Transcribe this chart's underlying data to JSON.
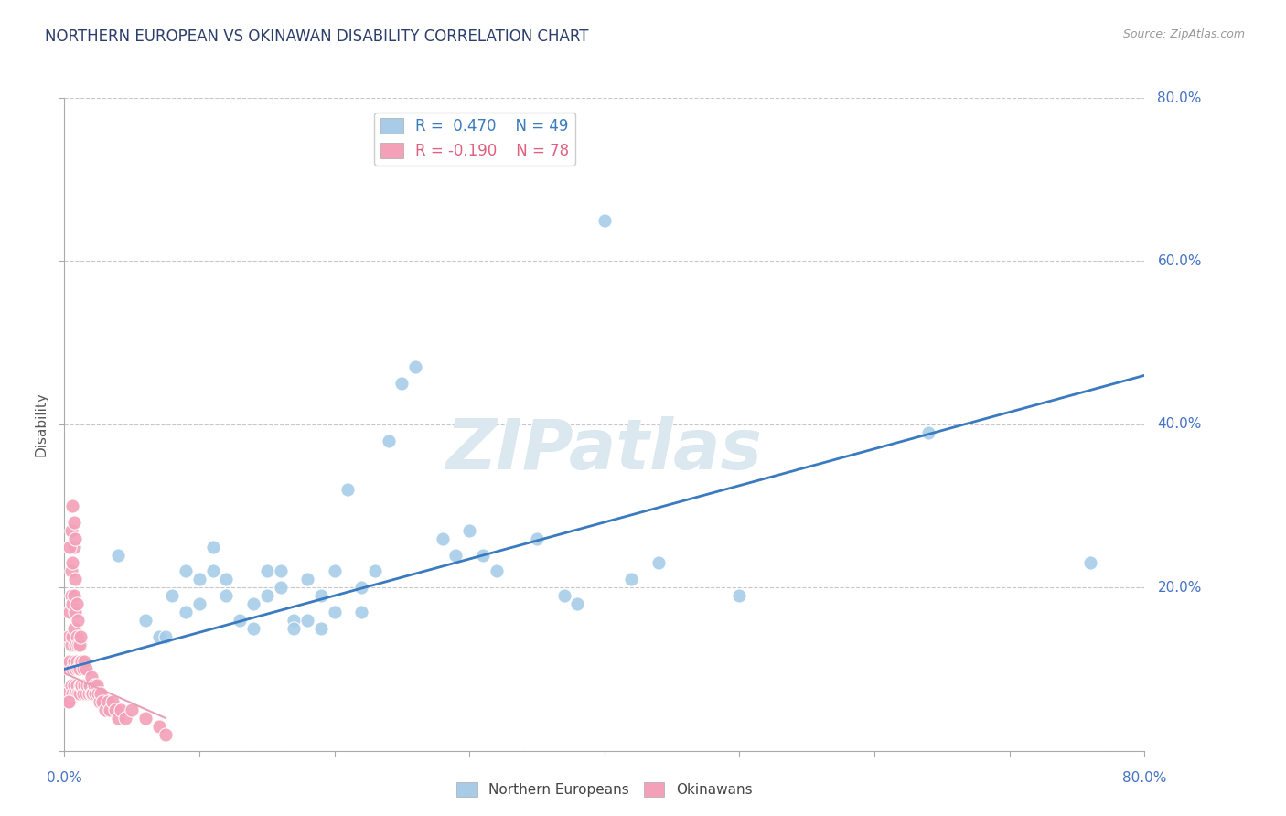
{
  "title": "NORTHERN EUROPEAN VS OKINAWAN DISABILITY CORRELATION CHART",
  "source": "Source: ZipAtlas.com",
  "ylabel": "Disability",
  "xlim": [
    0.0,
    0.8
  ],
  "ylim": [
    0.0,
    0.8
  ],
  "legend_r1": "R =  0.470",
  "legend_n1": "N = 49",
  "legend_r2": "R = -0.190",
  "legend_n2": "N = 78",
  "blue_color": "#a8cce8",
  "pink_color": "#f4a0b8",
  "blue_line_color": "#3a7abf",
  "pink_line_color": "#e8a0b8",
  "watermark_color": "#dce8f0",
  "background_color": "#ffffff",
  "grid_color": "#c8c8c8",
  "blue_line_x0": 0.0,
  "blue_line_y0": 0.1,
  "blue_line_x1": 0.8,
  "blue_line_y1": 0.46,
  "pink_line_x0": 0.0,
  "pink_line_y0": 0.095,
  "pink_line_x1": 0.075,
  "pink_line_y1": 0.04,
  "blue_points": [
    [
      0.04,
      0.24
    ],
    [
      0.06,
      0.16
    ],
    [
      0.07,
      0.14
    ],
    [
      0.075,
      0.14
    ],
    [
      0.08,
      0.19
    ],
    [
      0.09,
      0.22
    ],
    [
      0.09,
      0.17
    ],
    [
      0.1,
      0.21
    ],
    [
      0.1,
      0.18
    ],
    [
      0.11,
      0.22
    ],
    [
      0.11,
      0.25
    ],
    [
      0.12,
      0.19
    ],
    [
      0.12,
      0.21
    ],
    [
      0.13,
      0.16
    ],
    [
      0.14,
      0.18
    ],
    [
      0.14,
      0.15
    ],
    [
      0.15,
      0.22
    ],
    [
      0.15,
      0.19
    ],
    [
      0.16,
      0.22
    ],
    [
      0.16,
      0.2
    ],
    [
      0.17,
      0.16
    ],
    [
      0.17,
      0.15
    ],
    [
      0.18,
      0.21
    ],
    [
      0.18,
      0.16
    ],
    [
      0.19,
      0.15
    ],
    [
      0.19,
      0.19
    ],
    [
      0.2,
      0.17
    ],
    [
      0.2,
      0.22
    ],
    [
      0.21,
      0.32
    ],
    [
      0.22,
      0.17
    ],
    [
      0.22,
      0.2
    ],
    [
      0.23,
      0.22
    ],
    [
      0.24,
      0.38
    ],
    [
      0.25,
      0.45
    ],
    [
      0.26,
      0.47
    ],
    [
      0.28,
      0.26
    ],
    [
      0.29,
      0.24
    ],
    [
      0.3,
      0.27
    ],
    [
      0.31,
      0.24
    ],
    [
      0.32,
      0.22
    ],
    [
      0.35,
      0.26
    ],
    [
      0.37,
      0.19
    ],
    [
      0.38,
      0.18
    ],
    [
      0.4,
      0.65
    ],
    [
      0.42,
      0.21
    ],
    [
      0.44,
      0.23
    ],
    [
      0.5,
      0.19
    ],
    [
      0.64,
      0.39
    ],
    [
      0.76,
      0.23
    ]
  ],
  "pink_points": [
    [
      0.002,
      0.07
    ],
    [
      0.003,
      0.1
    ],
    [
      0.003,
      0.14
    ],
    [
      0.004,
      0.06
    ],
    [
      0.004,
      0.11
    ],
    [
      0.004,
      0.17
    ],
    [
      0.005,
      0.08
    ],
    [
      0.005,
      0.13
    ],
    [
      0.005,
      0.19
    ],
    [
      0.005,
      0.22
    ],
    [
      0.006,
      0.07
    ],
    [
      0.006,
      0.1
    ],
    [
      0.006,
      0.14
    ],
    [
      0.006,
      0.18
    ],
    [
      0.006,
      0.23
    ],
    [
      0.007,
      0.08
    ],
    [
      0.007,
      0.11
    ],
    [
      0.007,
      0.15
    ],
    [
      0.007,
      0.19
    ],
    [
      0.007,
      0.25
    ],
    [
      0.008,
      0.07
    ],
    [
      0.008,
      0.1
    ],
    [
      0.008,
      0.13
    ],
    [
      0.008,
      0.17
    ],
    [
      0.008,
      0.21
    ],
    [
      0.009,
      0.08
    ],
    [
      0.009,
      0.11
    ],
    [
      0.009,
      0.14
    ],
    [
      0.009,
      0.18
    ],
    [
      0.01,
      0.07
    ],
    [
      0.01,
      0.1
    ],
    [
      0.01,
      0.13
    ],
    [
      0.01,
      0.16
    ],
    [
      0.011,
      0.07
    ],
    [
      0.011,
      0.1
    ],
    [
      0.011,
      0.13
    ],
    [
      0.012,
      0.08
    ],
    [
      0.012,
      0.11
    ],
    [
      0.012,
      0.14
    ],
    [
      0.013,
      0.08
    ],
    [
      0.013,
      0.11
    ],
    [
      0.014,
      0.07
    ],
    [
      0.014,
      0.1
    ],
    [
      0.015,
      0.08
    ],
    [
      0.015,
      0.11
    ],
    [
      0.016,
      0.07
    ],
    [
      0.016,
      0.1
    ],
    [
      0.017,
      0.08
    ],
    [
      0.018,
      0.07
    ],
    [
      0.019,
      0.08
    ],
    [
      0.02,
      0.07
    ],
    [
      0.02,
      0.09
    ],
    [
      0.021,
      0.07
    ],
    [
      0.022,
      0.08
    ],
    [
      0.023,
      0.07
    ],
    [
      0.024,
      0.08
    ],
    [
      0.025,
      0.07
    ],
    [
      0.026,
      0.06
    ],
    [
      0.027,
      0.07
    ],
    [
      0.028,
      0.06
    ],
    [
      0.03,
      0.05
    ],
    [
      0.032,
      0.06
    ],
    [
      0.034,
      0.05
    ],
    [
      0.036,
      0.06
    ],
    [
      0.038,
      0.05
    ],
    [
      0.04,
      0.04
    ],
    [
      0.042,
      0.05
    ],
    [
      0.045,
      0.04
    ],
    [
      0.05,
      0.05
    ],
    [
      0.005,
      0.27
    ],
    [
      0.006,
      0.3
    ],
    [
      0.007,
      0.28
    ],
    [
      0.004,
      0.25
    ],
    [
      0.008,
      0.26
    ],
    [
      0.06,
      0.04
    ],
    [
      0.07,
      0.03
    ],
    [
      0.075,
      0.02
    ],
    [
      0.003,
      0.06
    ]
  ]
}
